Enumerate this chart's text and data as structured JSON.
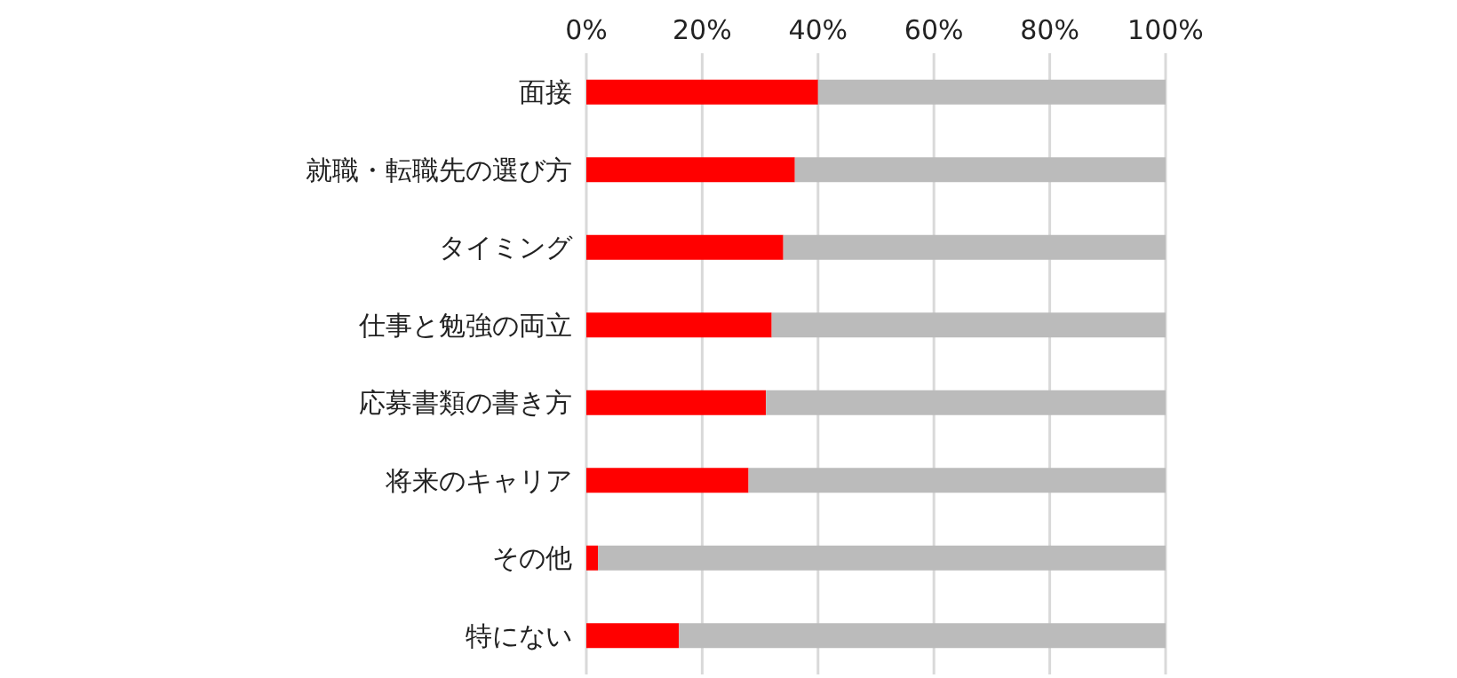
{
  "chart_data": {
    "type": "bar",
    "orientation": "horizontal",
    "stacked": true,
    "categories": [
      "面接",
      "就職・転職先の選び方",
      "タイミング",
      "仕事と勉強の両立",
      "応募書類の書き方",
      "将来のキャリア",
      "その他",
      "特にない"
    ],
    "series": [
      {
        "color": "#ff0000",
        "values": [
          40,
          36,
          34,
          32,
          31,
          28,
          2,
          16
        ]
      },
      {
        "color": "#bbbbbb",
        "values": [
          60,
          64,
          66,
          68,
          69,
          72,
          98,
          84
        ]
      }
    ],
    "xlim": [
      0,
      100
    ],
    "xticks": [
      {
        "value": 0,
        "label": "0%"
      },
      {
        "value": 20,
        "label": "20%"
      },
      {
        "value": 40,
        "label": "40%"
      },
      {
        "value": 60,
        "label": "60%"
      },
      {
        "value": 80,
        "label": "80%"
      },
      {
        "value": 100,
        "label": "100%"
      }
    ],
    "grid": "x"
  }
}
